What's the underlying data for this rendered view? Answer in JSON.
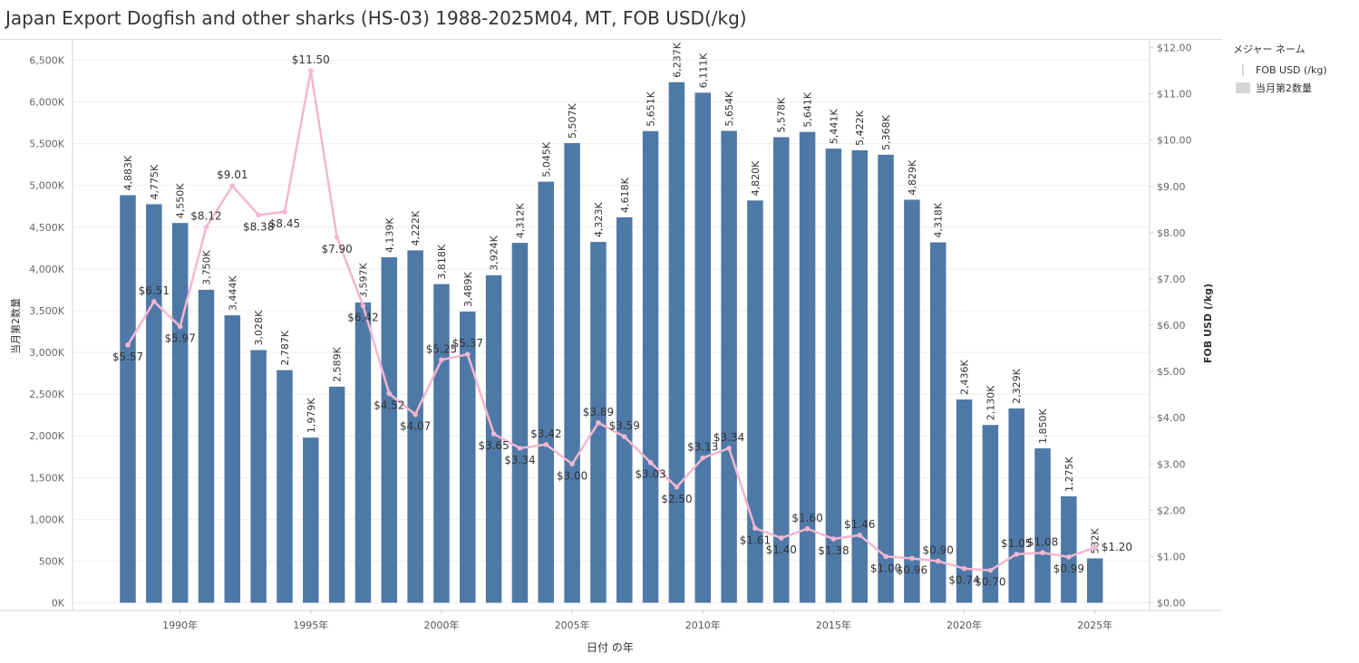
{
  "title": "Japan Export Dogfish and other sharks (HS-03) 1988-2025M04, MT, FOB USD(/kg)",
  "legend": {
    "title": "メジャー ネーム",
    "items": [
      {
        "label": "FOB USD (/kg)",
        "kind": "line"
      },
      {
        "label": "当月第2数量",
        "kind": "box"
      }
    ]
  },
  "colors": {
    "bar": "#4e79a7",
    "line": "#f4b6d2",
    "grid": "#eeeeee",
    "axis": "#d0d0d0"
  },
  "chart_data": {
    "type": "bar",
    "xlabel": "日付 の年",
    "ylabel": "当月第2数量",
    "y2label": "FOB USD (/kg)",
    "ylim": [
      0,
      6500
    ],
    "y2lim": [
      0,
      12
    ],
    "y_ticks": [
      "0K",
      "500K",
      "1,000K",
      "1,500K",
      "2,000K",
      "2,500K",
      "3,000K",
      "3,500K",
      "4,000K",
      "4,500K",
      "5,000K",
      "5,500K",
      "6,000K",
      "6,500K"
    ],
    "y2_ticks": [
      "$0.00",
      "$1.00",
      "$2.00",
      "$3.00",
      "$4.00",
      "$5.00",
      "$6.00",
      "$7.00",
      "$8.00",
      "$9.00",
      "$10.00",
      "$11.00",
      "$12.00"
    ],
    "x_ticks": [
      "1990年",
      "1995年",
      "2000年",
      "2005年",
      "2010年",
      "2015年",
      "2020年",
      "2025年"
    ],
    "years": [
      1988,
      1989,
      1990,
      1991,
      1992,
      1993,
      1994,
      1995,
      1996,
      1997,
      1998,
      1999,
      2000,
      2001,
      2002,
      2003,
      2004,
      2005,
      2006,
      2007,
      2008,
      2009,
      2010,
      2011,
      2012,
      2013,
      2014,
      2015,
      2016,
      2017,
      2018,
      2019,
      2020,
      2021,
      2022,
      2023,
      2024,
      2025
    ],
    "quantity_k": [
      4883,
      4775,
      4550,
      3750,
      3444,
      3028,
      2787,
      1979,
      2589,
      3597,
      4139,
      4222,
      3818,
      3489,
      3924,
      4312,
      5045,
      5507,
      4323,
      4618,
      5651,
      6237,
      6111,
      5654,
      4820,
      5578,
      5641,
      5441,
      5422,
      5368,
      4829,
      4318,
      2436,
      2130,
      2329,
      1850,
      1275,
      532
    ],
    "quantity_labels": [
      "4,883K",
      "4,775K",
      "4,550K",
      "3,750K",
      "3,444K",
      "3,028K",
      "2,787K",
      "1,979K",
      "2,589K",
      "3,597K",
      "4,139K",
      "4,222K",
      "3,818K",
      "3,489K",
      "3,924K",
      "4,312K",
      "5,045K",
      "5,507K",
      "4,323K",
      "4,618K",
      "5,651K",
      "6,237K",
      "6,111K",
      "5,654K",
      "4,820K",
      "5,578K",
      "5,641K",
      "5,441K",
      "5,422K",
      "5,368K",
      "4,829K",
      "4,318K",
      "2,436K",
      "2,130K",
      "2,329K",
      "1,850K",
      "1,275K",
      "532K"
    ],
    "fob_usd_per_kg": [
      5.57,
      6.51,
      5.97,
      8.12,
      9.01,
      8.38,
      8.45,
      11.5,
      7.9,
      6.42,
      4.52,
      4.07,
      5.25,
      5.37,
      3.65,
      3.34,
      3.42,
      3.0,
      3.89,
      3.59,
      3.03,
      2.5,
      3.13,
      3.34,
      1.61,
      1.4,
      1.6,
      1.38,
      1.46,
      1.0,
      0.96,
      0.9,
      0.74,
      0.7,
      1.05,
      1.08,
      0.99,
      1.2
    ],
    "fob_labels": [
      "$5.57",
      "$6.51",
      "$5.97",
      "$8.12",
      "$9.01",
      "$8.38",
      "$8.45",
      "$11.50",
      "$7.90",
      "$6.42",
      "$4.52",
      "$4.07",
      "$5.25",
      "$5.37",
      "$3.65",
      "$3.34",
      "$3.42",
      "$3.00",
      "$3.89",
      "$3.59",
      "$3.03",
      "$2.50",
      "$3.13",
      "$3.34",
      "$1.61",
      "$1.40",
      "$1.60",
      "$1.38",
      "$1.46",
      "$1.00",
      "$0.96",
      "$0.90",
      "$0.74",
      "$0.70",
      "$1.05",
      "$1.08",
      "$0.99",
      "$1.20"
    ],
    "fob_label_pos": [
      "below",
      "above",
      "below",
      "above",
      "above",
      "below",
      "below",
      "above",
      "below",
      "below",
      "below",
      "below",
      "above",
      "above",
      "below",
      "below",
      "above",
      "below",
      "above",
      "above",
      "below",
      "below",
      "above",
      "above",
      "below",
      "below",
      "above",
      "below",
      "above",
      "below",
      "below",
      "above",
      "below",
      "below",
      "above",
      "above",
      "below",
      "right"
    ],
    "grid": true,
    "legend_position": "right"
  }
}
